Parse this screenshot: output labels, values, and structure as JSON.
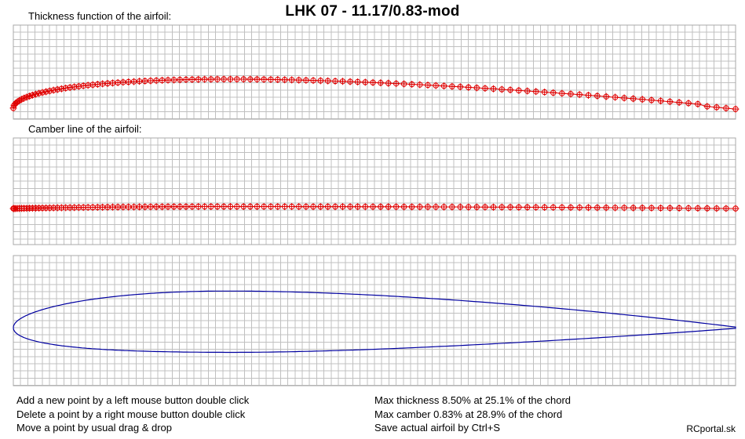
{
  "title": "LHK  07 - 11.17/0.83-mod",
  "panels": {
    "thickness": {
      "label": "Thickness function of the airfoil:"
    },
    "camber": {
      "label": "Camber line of the airfoil:"
    }
  },
  "instructions_left": [
    "Add a new point by a left mouse button double click",
    "Delete a point by a right mouse button double click",
    "Move a point by usual drag & drop"
  ],
  "instructions_right": [
    "Max thickness 8.50% at 25.1% of the chord",
    "Max camber 0.83% at 28.9% of the chord",
    "Save actual airfoil by Ctrl+S"
  ],
  "footer": "RCportal.sk",
  "colors": {
    "grid": "#c0c0c0",
    "control_points": "#e00000",
    "airfoil": "#0000a0"
  },
  "airfoil": {
    "max_thickness_pct": 8.5,
    "max_thickness_pos_pct": 25.1,
    "max_camber_pct": 0.83,
    "max_camber_pos_pct": 28.9
  }
}
